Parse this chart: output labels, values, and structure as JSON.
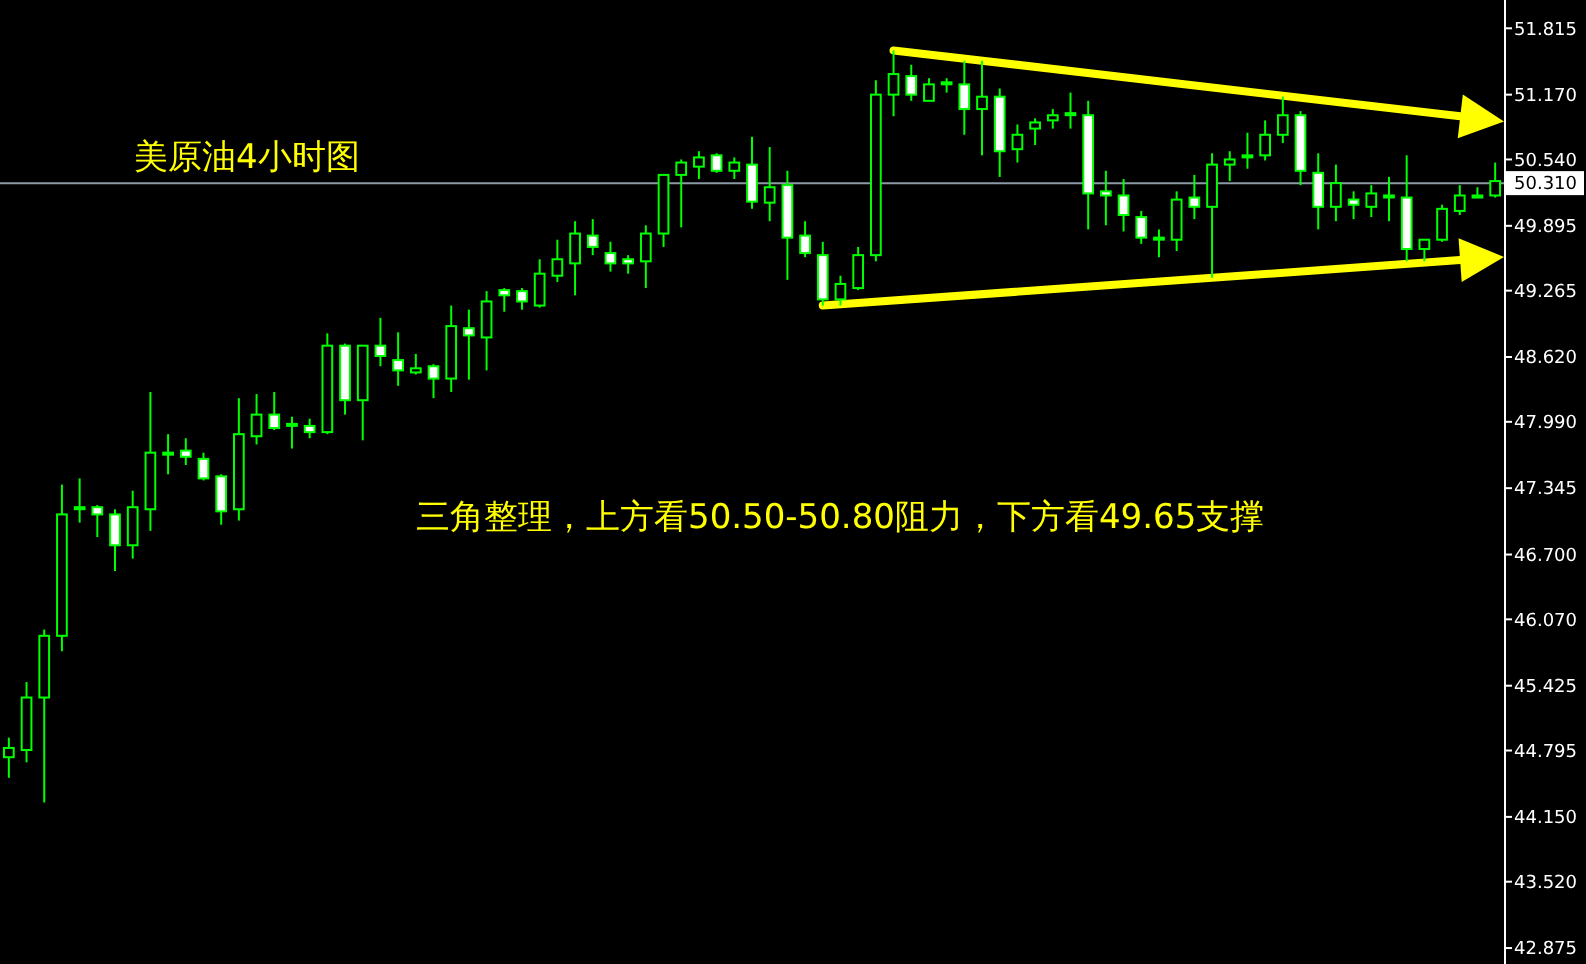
{
  "chart_data": {
    "type": "candlestick",
    "title": "美原油4小时图",
    "annotations": [
      "三角整理，上方看50.50-50.80阻力，下方看49.65支撑"
    ],
    "color": "#00ff00",
    "categories": [
      null,
      null,
      null,
      null,
      null,
      null,
      null,
      null,
      null,
      null,
      null,
      null,
      null,
      null,
      null,
      null,
      null,
      null,
      null,
      null,
      null,
      null,
      null,
      null,
      null,
      null,
      null,
      null,
      null,
      null,
      null,
      null,
      null,
      null,
      null,
      null,
      null,
      null,
      null,
      null,
      null,
      null,
      null,
      null,
      null,
      null,
      null,
      null,
      null,
      null,
      null,
      null,
      null,
      null,
      null,
      null,
      null,
      null,
      null,
      null,
      null,
      null,
      null,
      null,
      null,
      null,
      null,
      null,
      null,
      null,
      null,
      null,
      null,
      null,
      null,
      null,
      null,
      null,
      null,
      null,
      null,
      null,
      null,
      null,
      null
    ],
    "ohlc": [
      [
        44.73,
        44.92,
        44.53,
        44.82
      ],
      [
        44.8,
        45.46,
        44.68,
        45.31
      ],
      [
        45.31,
        45.97,
        44.29,
        45.91
      ],
      [
        45.91,
        47.38,
        45.76,
        47.09
      ],
      [
        47.16,
        47.44,
        47.01,
        47.16
      ],
      [
        47.16,
        47.18,
        46.87,
        47.09
      ],
      [
        47.09,
        47.14,
        46.54,
        46.79
      ],
      [
        46.79,
        47.32,
        46.66,
        47.16
      ],
      [
        47.14,
        48.28,
        46.93,
        47.69
      ],
      [
        47.69,
        47.87,
        47.48,
        47.69
      ],
      [
        47.71,
        47.83,
        47.57,
        47.65
      ],
      [
        47.63,
        47.69,
        47.42,
        47.44
      ],
      [
        47.46,
        47.48,
        46.99,
        47.12
      ],
      [
        47.14,
        48.22,
        47.03,
        47.87
      ],
      [
        47.85,
        48.26,
        47.77,
        48.06
      ],
      [
        48.06,
        48.28,
        47.91,
        47.93
      ],
      [
        47.97,
        48.04,
        47.73,
        47.97
      ],
      [
        47.95,
        48.02,
        47.83,
        47.89
      ],
      [
        47.89,
        48.85,
        47.87,
        48.73
      ],
      [
        48.73,
        48.75,
        48.06,
        48.2
      ],
      [
        48.2,
        48.73,
        47.81,
        48.73
      ],
      [
        48.73,
        49.0,
        48.53,
        48.63
      ],
      [
        48.59,
        48.86,
        48.34,
        48.49
      ],
      [
        48.47,
        48.65,
        48.45,
        48.51
      ],
      [
        48.53,
        48.55,
        48.22,
        48.41
      ],
      [
        48.41,
        49.12,
        48.28,
        48.92
      ],
      [
        48.9,
        49.08,
        48.4,
        48.83
      ],
      [
        48.81,
        49.26,
        48.49,
        49.16
      ],
      [
        49.27,
        49.29,
        49.06,
        49.22
      ],
      [
        49.26,
        49.29,
        49.08,
        49.16
      ],
      [
        49.12,
        49.57,
        49.1,
        49.43
      ],
      [
        49.41,
        49.76,
        49.35,
        49.57
      ],
      [
        49.53,
        49.94,
        49.22,
        49.82
      ],
      [
        49.8,
        49.96,
        49.61,
        49.69
      ],
      [
        49.63,
        49.74,
        49.45,
        49.53
      ],
      [
        49.57,
        49.61,
        49.43,
        49.53
      ],
      [
        49.55,
        49.9,
        49.29,
        49.82
      ],
      [
        49.82,
        50.39,
        49.69,
        50.39
      ],
      [
        50.39,
        50.54,
        49.88,
        50.51
      ],
      [
        50.47,
        50.62,
        50.35,
        50.56
      ],
      [
        50.58,
        50.6,
        50.41,
        50.43
      ],
      [
        50.43,
        50.56,
        50.35,
        50.51
      ],
      [
        50.49,
        50.76,
        50.06,
        50.13
      ],
      [
        50.12,
        50.66,
        49.94,
        50.27
      ],
      [
        50.29,
        50.43,
        49.37,
        49.78
      ],
      [
        49.8,
        49.94,
        49.59,
        49.63
      ],
      [
        49.61,
        49.74,
        49.12,
        49.18
      ],
      [
        49.18,
        49.41,
        49.12,
        49.33
      ],
      [
        49.29,
        49.69,
        49.27,
        49.61
      ],
      [
        49.61,
        51.31,
        49.55,
        51.17
      ],
      [
        51.17,
        51.6,
        50.96,
        51.37
      ],
      [
        51.35,
        51.46,
        51.11,
        51.17
      ],
      [
        51.11,
        51.33,
        51.11,
        51.27
      ],
      [
        51.29,
        51.33,
        51.19,
        51.29
      ],
      [
        51.27,
        51.5,
        50.78,
        51.03
      ],
      [
        51.03,
        51.5,
        50.58,
        51.15
      ],
      [
        51.15,
        51.23,
        50.37,
        50.62
      ],
      [
        50.64,
        50.88,
        50.51,
        50.78
      ],
      [
        50.84,
        50.94,
        50.68,
        50.9
      ],
      [
        50.92,
        51.03,
        50.84,
        50.97
      ],
      [
        50.99,
        51.19,
        50.84,
        50.99
      ],
      [
        50.97,
        51.11,
        49.86,
        50.21
      ],
      [
        50.23,
        50.43,
        49.9,
        50.19
      ],
      [
        50.19,
        50.35,
        49.84,
        50.0
      ],
      [
        49.98,
        50.04,
        49.72,
        49.78
      ],
      [
        49.78,
        49.86,
        49.59,
        49.78
      ],
      [
        49.76,
        50.23,
        49.65,
        50.15
      ],
      [
        50.17,
        50.39,
        49.96,
        50.08
      ],
      [
        50.08,
        50.6,
        49.39,
        50.49
      ],
      [
        50.49,
        50.62,
        50.33,
        50.54
      ],
      [
        50.58,
        50.8,
        50.45,
        50.58
      ],
      [
        50.58,
        50.92,
        50.53,
        50.78
      ],
      [
        50.78,
        51.15,
        50.7,
        50.97
      ],
      [
        50.97,
        51.01,
        50.29,
        50.43
      ],
      [
        50.41,
        50.6,
        49.86,
        50.08
      ],
      [
        50.08,
        50.49,
        49.94,
        50.31
      ],
      [
        50.15,
        50.23,
        49.96,
        50.1
      ],
      [
        50.08,
        50.29,
        49.98,
        50.21
      ],
      [
        50.19,
        50.37,
        49.94,
        50.19
      ],
      [
        50.17,
        50.58,
        49.55,
        49.67
      ],
      [
        49.67,
        49.76,
        49.55,
        49.76
      ],
      [
        49.76,
        50.1,
        49.74,
        50.06
      ],
      [
        50.04,
        50.29,
        50.0,
        50.19
      ],
      [
        50.17,
        50.27,
        50.17,
        50.19
      ],
      [
        50.19,
        50.51,
        50.17,
        50.33
      ]
    ],
    "ref_lines": [
      {
        "axis": "y",
        "value": 50.31,
        "label": "50.310",
        "color": "#8c9aa8"
      }
    ],
    "ylim": [
      42.72,
      52.09
    ],
    "yticks": [
      51.815,
      {
        "value": 51.17,
        "label": "51.170"
      },
      {
        "value": 50.54,
        "label": "50.540"
      },
      49.895,
      49.265,
      {
        "value": 48.62,
        "label": "48.620"
      },
      {
        "value": 47.99,
        "label": "47.990"
      },
      47.345,
      {
        "value": 46.7,
        "label": "46.700"
      },
      {
        "value": 46.07,
        "label": "46.070"
      },
      45.425,
      44.795,
      {
        "value": 44.15,
        "label": "44.150"
      },
      {
        "value": 43.52,
        "label": "43.520"
      },
      42.875
    ],
    "tick_labels": "y",
    "grid": false
  }
}
